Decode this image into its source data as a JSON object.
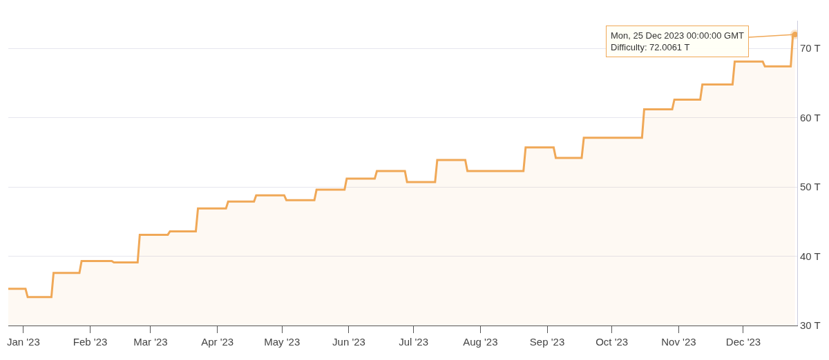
{
  "chart_data": {
    "type": "area",
    "x": [
      "2022-12-25",
      "2023-01-02",
      "2023-01-03",
      "2023-01-14",
      "2023-01-15",
      "2023-01-27",
      "2023-01-28",
      "2023-02-11",
      "2023-02-12",
      "2023-02-23",
      "2023-02-24",
      "2023-03-09",
      "2023-03-10",
      "2023-03-22",
      "2023-03-23",
      "2023-04-05",
      "2023-04-06",
      "2023-04-18",
      "2023-04-19",
      "2023-05-02",
      "2023-05-03",
      "2023-05-16",
      "2023-05-17",
      "2023-05-30",
      "2023-05-31",
      "2023-06-13",
      "2023-06-14",
      "2023-06-27",
      "2023-06-28",
      "2023-07-11",
      "2023-07-12",
      "2023-07-25",
      "2023-07-26",
      "2023-08-21",
      "2023-08-22",
      "2023-09-04",
      "2023-09-05",
      "2023-09-17",
      "2023-09-18",
      "2023-10-15",
      "2023-10-16",
      "2023-10-29",
      "2023-10-30",
      "2023-11-11",
      "2023-11-12",
      "2023-11-26",
      "2023-11-27",
      "2023-12-10",
      "2023-12-11",
      "2023-12-23",
      "2023-12-24",
      "2023-12-25"
    ],
    "series": [
      {
        "color": "#f0a857",
        "values": [
          35.3,
          35.3,
          34.1,
          34.1,
          37.6,
          37.6,
          39.3,
          39.3,
          39.1,
          39.1,
          43.1,
          43.1,
          43.6,
          43.6,
          46.9,
          46.9,
          47.9,
          47.9,
          48.8,
          48.8,
          48.1,
          48.1,
          49.6,
          49.6,
          51.2,
          51.2,
          52.3,
          52.3,
          50.7,
          50.7,
          53.9,
          53.9,
          52.3,
          52.3,
          55.7,
          55.7,
          54.2,
          54.2,
          57.1,
          57.1,
          61.2,
          61.2,
          62.6,
          62.6,
          64.8,
          64.8,
          68.1,
          68.1,
          67.4,
          67.4,
          72.0,
          72.0
        ]
      }
    ],
    "xlim": [
      "2022-12-25",
      "2023-12-26"
    ],
    "xticks": [
      {
        "value": "2023-01-01",
        "label": "Jan '23"
      },
      {
        "value": "2023-02-01",
        "label": "Feb '23"
      },
      {
        "value": "2023-03-01",
        "label": "Mar '23"
      },
      {
        "value": "2023-04-01",
        "label": "Apr '23"
      },
      {
        "value": "2023-05-01",
        "label": "May '23"
      },
      {
        "value": "2023-06-01",
        "label": "Jun '23"
      },
      {
        "value": "2023-07-01",
        "label": "Jul '23"
      },
      {
        "value": "2023-08-01",
        "label": "Aug '23"
      },
      {
        "value": "2023-09-01",
        "label": "Sep '23"
      },
      {
        "value": "2023-10-01",
        "label": "Oct '23"
      },
      {
        "value": "2023-11-01",
        "label": "Nov '23"
      },
      {
        "value": "2023-12-01",
        "label": "Dec '23"
      }
    ],
    "ylim": [
      30,
      74
    ],
    "yticks": [
      {
        "value": 30,
        "label": "30 T"
      },
      {
        "value": 40,
        "label": "40 T"
      },
      {
        "value": 50,
        "label": "50 T"
      },
      {
        "value": 60,
        "label": "60 T"
      },
      {
        "value": 70,
        "label": "70 T"
      }
    ],
    "grid": "y",
    "annotations": [
      {
        "text": "Mon, 25 Dec 2023 00:00:00 GMT\nDifficulty: 72.0061 T",
        "x": "2023-12-25",
        "y": 72.0061
      }
    ]
  }
}
